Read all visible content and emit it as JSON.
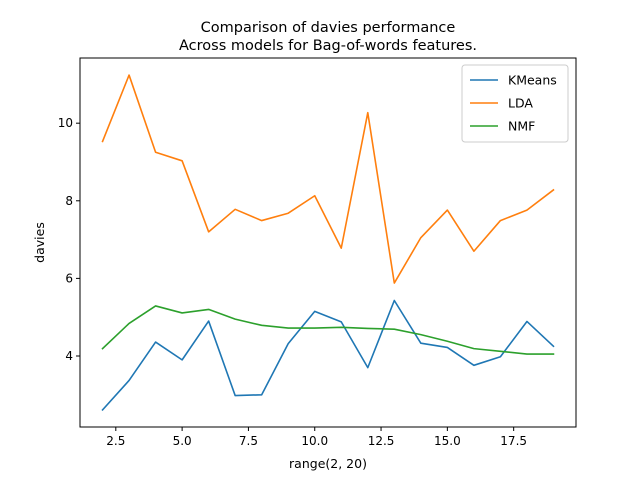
{
  "chart_data": {
    "type": "line",
    "title": [
      "Comparison of davies performance",
      "Across models for Bag-of-words features."
    ],
    "xlabel": "range(2, 20)",
    "ylabel": "davies",
    "x": [
      2,
      3,
      4,
      5,
      6,
      7,
      8,
      9,
      10,
      11,
      12,
      13,
      14,
      15,
      16,
      17,
      18,
      19
    ],
    "xlim": [
      1.15,
      19.85
    ],
    "ylim": [
      2.17,
      11.68
    ],
    "xticks": [
      2.5,
      5.0,
      7.5,
      10.0,
      12.5,
      15.0,
      17.5
    ],
    "xtick_labels": [
      "2.5",
      "5.0",
      "7.5",
      "10.0",
      "12.5",
      "15.0",
      "17.5"
    ],
    "yticks": [
      4,
      6,
      8,
      10
    ],
    "ytick_labels": [
      "4",
      "6",
      "8",
      "10"
    ],
    "grid": false,
    "legend_position": "top-right",
    "series": [
      {
        "name": "KMeans",
        "color": "#1f77b4",
        "values": [
          2.61,
          3.37,
          4.36,
          3.9,
          4.9,
          2.98,
          3.0,
          4.32,
          5.15,
          4.88,
          3.7,
          5.43,
          4.33,
          4.22,
          3.76,
          3.98,
          4.89,
          4.25
        ]
      },
      {
        "name": "LDA",
        "color": "#ff7f0e",
        "values": [
          9.53,
          11.24,
          9.25,
          9.03,
          7.2,
          7.78,
          7.49,
          7.68,
          8.13,
          6.78,
          10.27,
          5.88,
          7.05,
          7.76,
          6.7,
          7.49,
          7.76,
          8.28
        ]
      },
      {
        "name": "NMF",
        "color": "#2ca02c",
        "values": [
          4.19,
          4.84,
          5.29,
          5.11,
          5.2,
          4.95,
          4.79,
          4.72,
          4.72,
          4.74,
          4.71,
          4.69,
          4.55,
          4.38,
          4.19,
          4.12,
          4.05,
          4.05
        ]
      }
    ]
  }
}
